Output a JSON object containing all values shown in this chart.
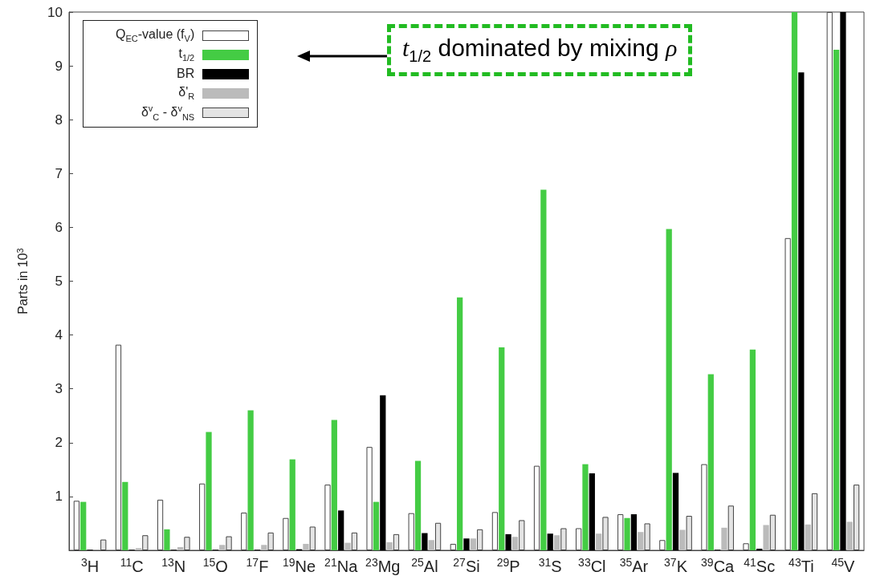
{
  "chart_data": {
    "type": "bar",
    "ylabel": "Parts in 10$^{3}$",
    "categories": [
      "$^{3}$H",
      "$^{11}$C",
      "$^{13}$N",
      "$^{15}$O",
      "$^{17}$F",
      "$^{19}$Ne",
      "$^{21}$Na",
      "$^{23}$Mg",
      "$^{25}$Al",
      "$^{27}$Si",
      "$^{29}$P",
      "$^{31}$S",
      "$^{33}$Cl",
      "$^{35}$Ar",
      "$^{37}$K",
      "$^{39}$Ca",
      "$^{41}$Sc",
      "$^{43}$Ti",
      "$^{45}$V"
    ],
    "series": [
      {
        "name": "Q$_{EC}$-value (f$_{V}$)",
        "color": "#ffffff",
        "values": [
          0.92,
          3.82,
          0.94,
          1.24,
          0.7,
          0.6,
          1.22,
          1.92,
          0.69,
          0.12,
          0.71,
          1.57,
          0.41,
          0.67,
          0.19,
          1.6,
          0.13,
          5.8,
          10
        ]
      },
      {
        "name": "t$_{1/2}$",
        "color": "#44cc44",
        "values": [
          0.9,
          1.27,
          0.39,
          2.2,
          2.6,
          1.69,
          2.42,
          0.9,
          1.66,
          4.7,
          3.77,
          6.7,
          1.6,
          0.6,
          5.97,
          3.27,
          3.73,
          10,
          9.3
        ]
      },
      {
        "name": "BR",
        "color": "#000000",
        "values": [
          0.01,
          0.01,
          0.01,
          0.01,
          0.01,
          0.02,
          0.74,
          2.88,
          0.32,
          0.22,
          0.3,
          0.31,
          1.43,
          0.67,
          1.44,
          0.01,
          0.03,
          8.88,
          10
        ]
      },
      {
        "name": "δ'$_{R}$",
        "color": "#bbbbbb",
        "values": [
          null,
          0.04,
          0.06,
          0.1,
          0.1,
          0.12,
          0.14,
          0.15,
          0.19,
          0.22,
          0.25,
          0.28,
          0.31,
          0.34,
          0.38,
          0.42,
          0.47,
          0.48,
          0.53
        ]
      },
      {
        "name": "δ$^{v}$$_{C}$ - δ$^{v}$$_{NS}$",
        "color": "#e4e4e4",
        "values": [
          0.2,
          0.28,
          0.25,
          0.26,
          0.33,
          0.44,
          0.33,
          0.3,
          0.51,
          0.39,
          0.56,
          0.41,
          0.62,
          0.5,
          0.64,
          0.83,
          0.66,
          1.06,
          1.22
        ]
      }
    ],
    "ylim": [
      0,
      10
    ],
    "yticks": [
      {
        "value": 0,
        "label": null
      },
      1,
      2,
      3,
      4,
      5,
      6,
      7,
      8,
      9,
      10
    ],
    "legend": "top left",
    "grid": false,
    "annotations": [
      "t$_{1/2}$ dominated by mixing ρ"
    ]
  }
}
